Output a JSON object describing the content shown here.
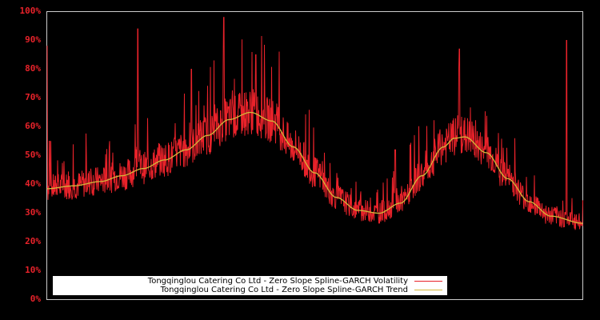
{
  "chart_data": {
    "type": "line",
    "title": "",
    "xlabel": "",
    "ylabel": "",
    "ylim": [
      0,
      100
    ],
    "yticks": [
      "0%",
      "10%",
      "20%",
      "30%",
      "40%",
      "50%",
      "60%",
      "70%",
      "80%",
      "90%",
      "100%"
    ],
    "grid": false,
    "legend_position": "lower center",
    "background": "#000000",
    "series": [
      {
        "name": "Tongqinglou Catering Co Ltd - Zero Slope Spline-GARCH Volatility",
        "color": "#e8222a",
        "x": [
          0,
          0.5,
          1,
          2,
          3,
          5,
          7,
          9,
          11,
          13,
          15,
          17,
          19,
          21,
          23,
          25,
          27,
          29,
          31,
          33,
          35,
          37,
          39,
          41,
          43,
          45,
          47,
          49,
          51,
          53,
          55,
          57,
          59,
          61,
          63,
          65,
          67,
          69,
          71,
          73,
          75,
          77,
          79,
          81,
          83,
          85,
          87,
          89,
          91,
          93,
          95,
          97,
          99,
          100
        ],
        "values": [
          88,
          55,
          45,
          36,
          38,
          37,
          40,
          44,
          41,
          38,
          47,
          94,
          45,
          44,
          46,
          44,
          80,
          54,
          56,
          98,
          57,
          60,
          85,
          62,
          58,
          55,
          50,
          47,
          42,
          35,
          30,
          28,
          27,
          29,
          33,
          52,
          38,
          40,
          46,
          50,
          55,
          87,
          58,
          55,
          48,
          40,
          34,
          30,
          28,
          27,
          25,
          90,
          25,
          30
        ]
      },
      {
        "name": "Tongqinglou Catering Co Ltd - Zero Slope Spline-GARCH Trend",
        "color": "#d4b83a",
        "x": [
          0,
          5,
          10,
          14,
          18,
          22,
          26,
          30,
          34,
          38,
          42,
          46,
          50,
          54,
          58,
          62,
          66,
          70,
          74,
          76,
          78,
          82,
          86,
          90,
          94,
          100
        ],
        "values": [
          38.5,
          39.5,
          41,
          43,
          45.5,
          48.5,
          52,
          57,
          62.5,
          65,
          62,
          53,
          44,
          35.5,
          31,
          30,
          33.5,
          43,
          53,
          56,
          56.5,
          51,
          42,
          34,
          29,
          26.5
        ]
      }
    ]
  },
  "legend": {
    "items": [
      {
        "label": "Tongqinglou Catering Co Ltd - Zero Slope Spline-GARCH Volatility",
        "color": "#e8222a"
      },
      {
        "label": "Tongqinglou Catering Co Ltd - Zero Slope Spline-GARCH Trend",
        "color": "#d4b83a"
      }
    ]
  },
  "axis": {
    "y_labels": [
      "0%",
      "10%",
      "20%",
      "30%",
      "40%",
      "50%",
      "60%",
      "70%",
      "80%",
      "90%",
      "100%"
    ]
  }
}
